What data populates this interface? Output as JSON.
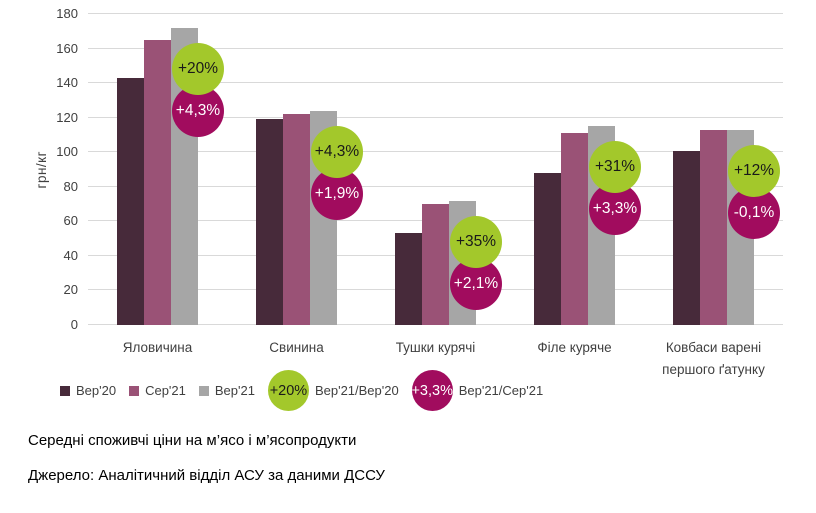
{
  "chart_data": {
    "type": "bar",
    "title": "Середні споживчі ціни на м’ясо і м’ясопродукти",
    "source": "Джерело: Аналітичний відділ АСУ за даними ДССУ",
    "ylabel": "грн/кг",
    "ylim": [
      0,
      180
    ],
    "yticks": [
      0,
      20,
      40,
      60,
      80,
      100,
      120,
      140,
      160,
      180
    ],
    "grid": true,
    "legend_position": "bottom",
    "categories": [
      "Яловичина",
      "Свинина",
      "Тушки курячі",
      "Філе куряче",
      "Ковбаси варені першого ґатунку"
    ],
    "series": [
      {
        "name": "Вер'20",
        "color": "#472a3a",
        "values": [
          143,
          119,
          53,
          88,
          101
        ]
      },
      {
        "name": "Сер'21",
        "color": "#9a5276",
        "values": [
          165,
          122,
          70,
          111,
          113
        ]
      },
      {
        "name": "Вер'21",
        "color": "#a6a6a6",
        "values": [
          172,
          124,
          72,
          115,
          113
        ]
      }
    ],
    "annotations": {
      "yoy": {
        "name": "Вер'21/Вер'20",
        "color": "#a3c82b",
        "text_color": "#1a1a1a",
        "labels": [
          "+20%",
          "+4,3%",
          "+35%",
          "+31%",
          "+12%"
        ]
      },
      "mom": {
        "name": "Вер'21/Сер'21",
        "color": "#a10c5e",
        "text_color": "#ffffff",
        "labels": [
          "+4,3%",
          "+1,9%",
          "+2,1%",
          "+3,3%",
          "-0,1%"
        ]
      }
    }
  },
  "legend": {
    "yoy_badge": "+20%",
    "yoy_label": "Вер'21/Вер'20",
    "mom_badge": "+3,3%",
    "mom_label": "Вер'21/Сер'21"
  }
}
